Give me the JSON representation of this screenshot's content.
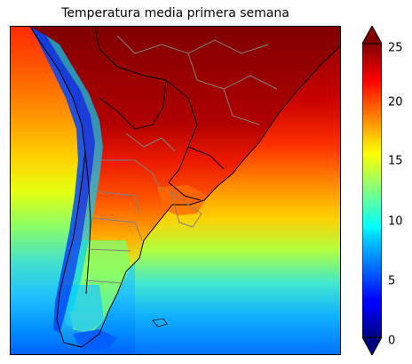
{
  "title": "Temperatura media primera semana",
  "colorbar": {
    "ticks": [
      "25",
      "20",
      "15",
      "10",
      "5",
      "0"
    ],
    "min": 0,
    "max": 25,
    "colormap": "jet",
    "extend": "both",
    "colors": {
      "max_extend": "#800000",
      "min_extend": "#00007f"
    }
  },
  "map": {
    "region": "South America (southern cone)",
    "palette": {
      "ocean_north": "#8b0000",
      "land_hot": "#800000",
      "coast_cool": "#00bfff",
      "andes": "#0050ff",
      "border_country": "#000000",
      "border_province": "#808080"
    }
  }
}
